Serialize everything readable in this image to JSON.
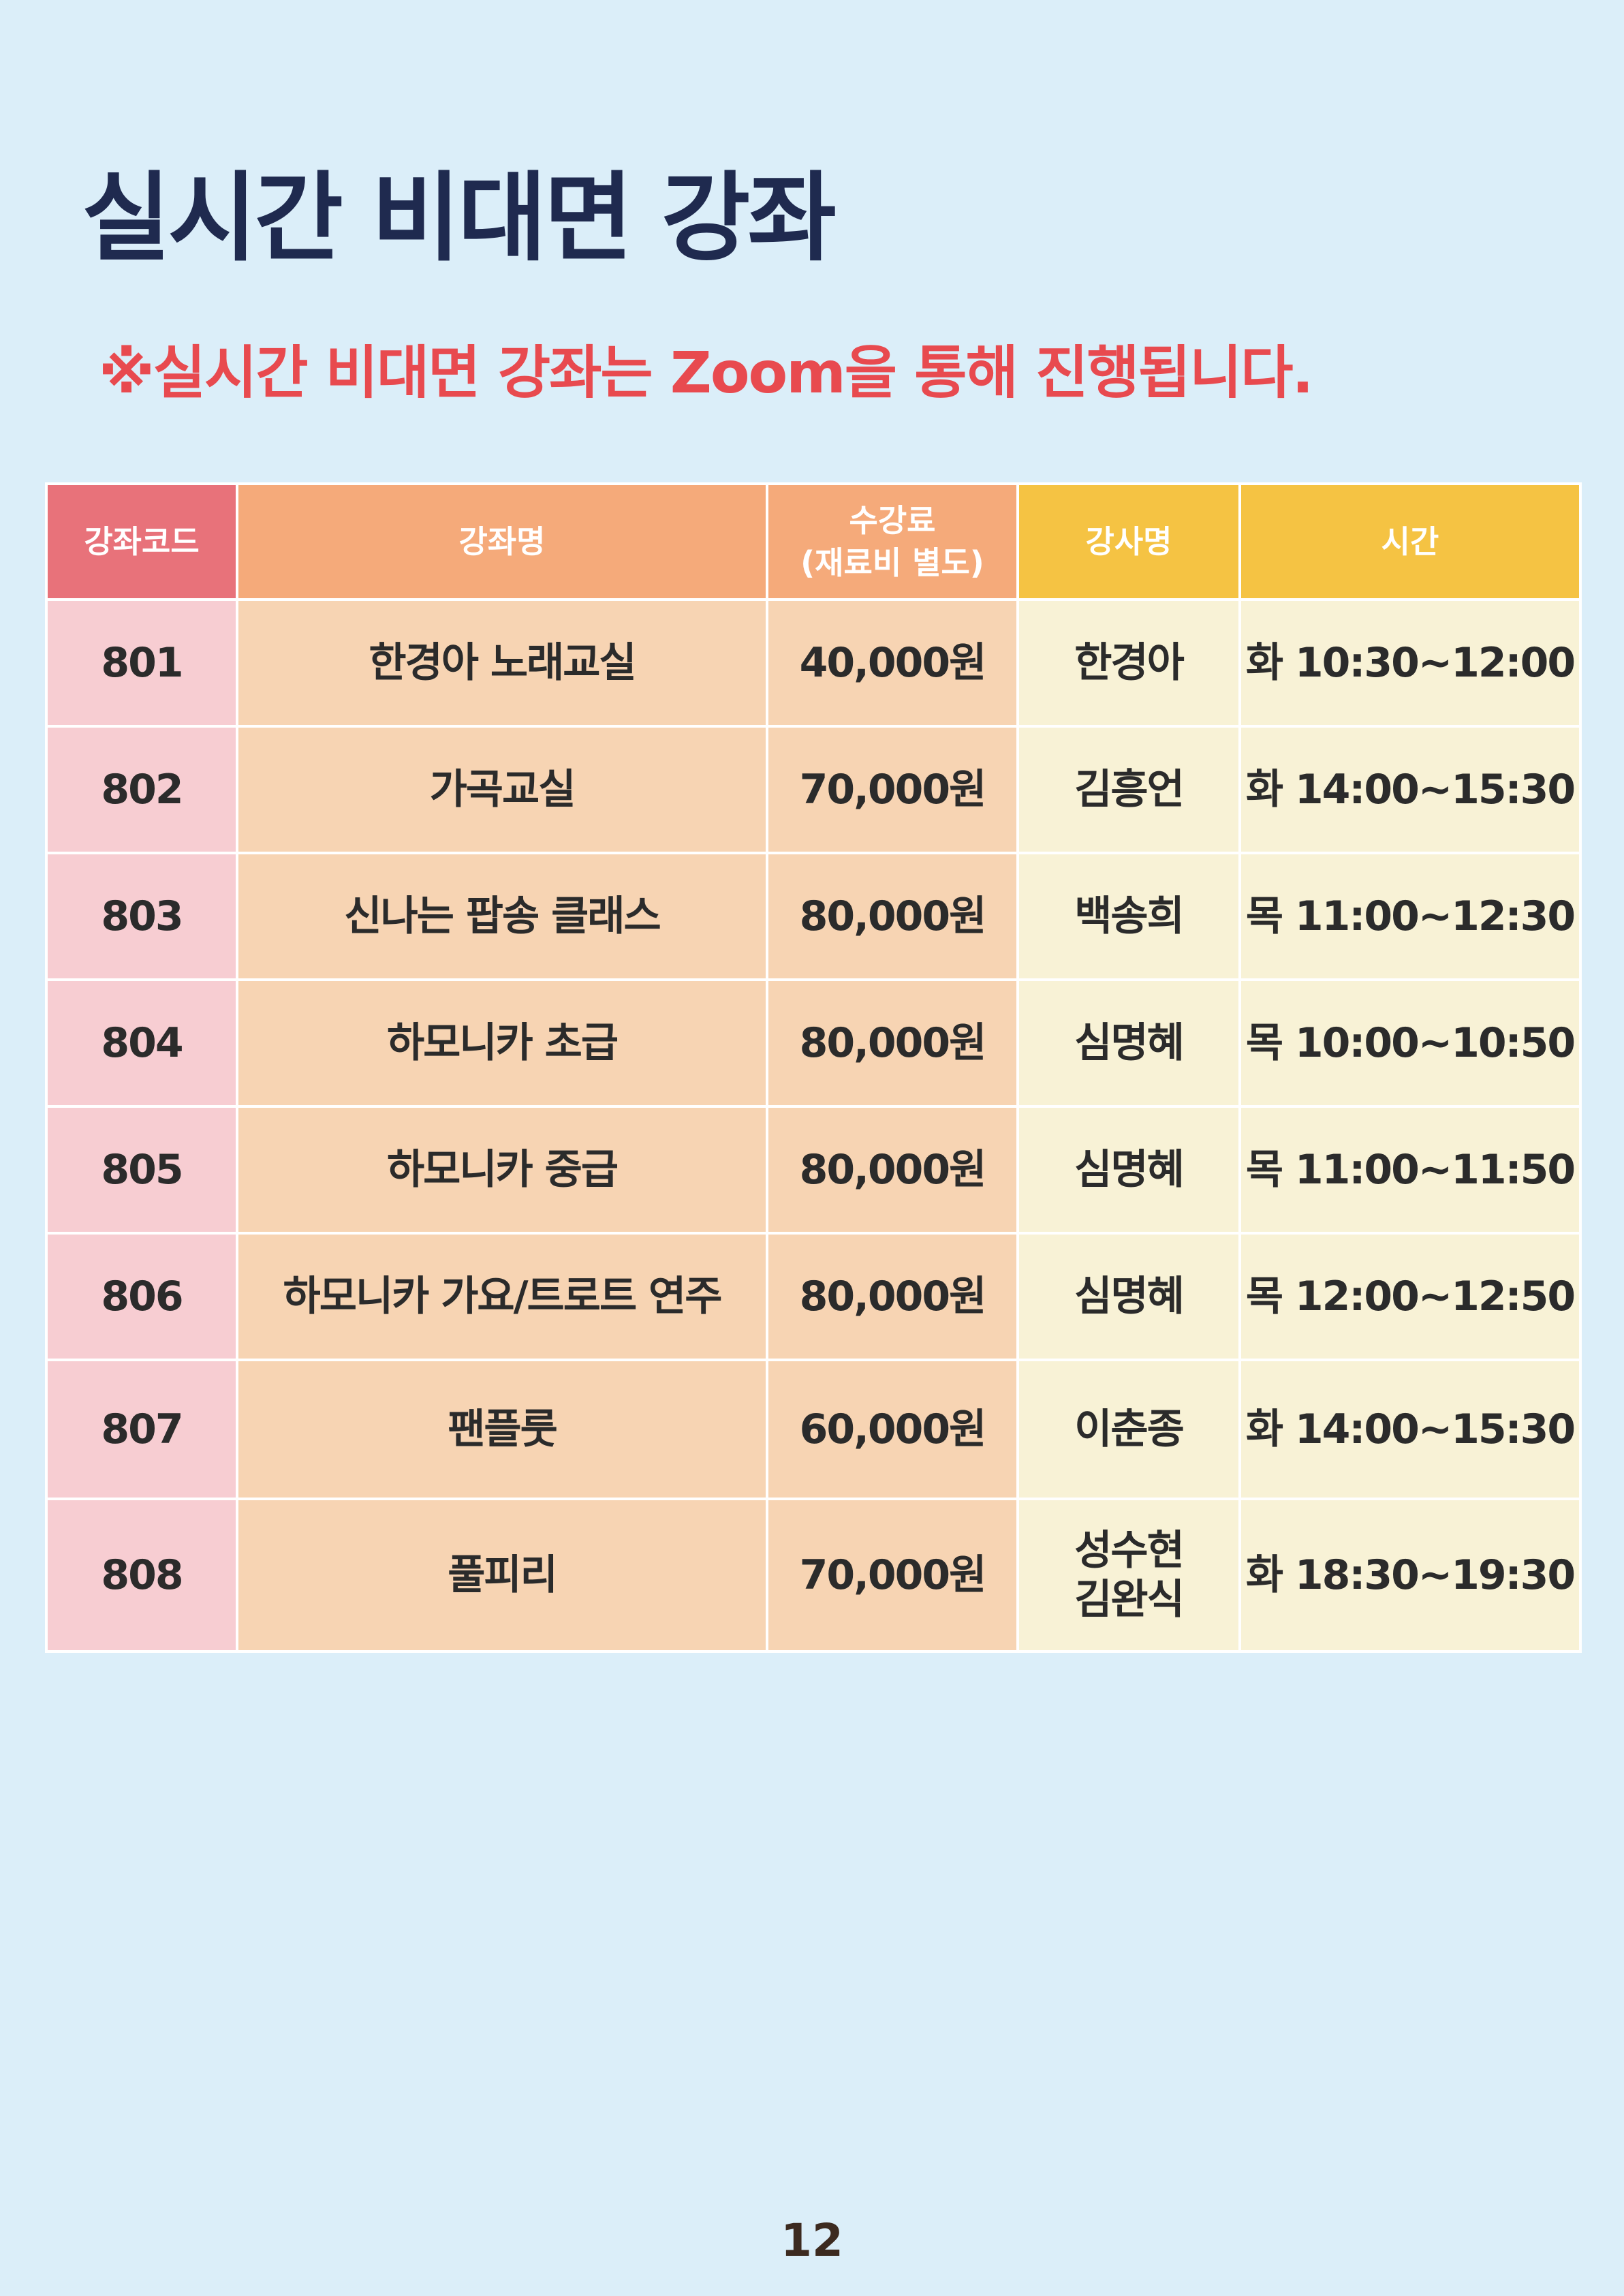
{
  "page": {
    "title": "실시간 비대면 강좌",
    "notice": "※실시간 비대면 강좌는 Zoom을 통해 진행됩니다.",
    "page_number": "12"
  },
  "table": {
    "headers": {
      "code": "강좌코드",
      "name": "강좌명",
      "fee_line1": "수강료",
      "fee_line2": "(재료비 별도)",
      "instructor": "강사명",
      "time": "시간"
    },
    "rows": [
      {
        "code": "801",
        "name": "한경아 노래교실",
        "fee": "40,000원",
        "instructor": "한경아",
        "instructor2": "",
        "time": "화 10:30~12:00"
      },
      {
        "code": "802",
        "name": "가곡교실",
        "fee": "70,000원",
        "instructor": "김흥언",
        "instructor2": "",
        "time": "화 14:00~15:30"
      },
      {
        "code": "803",
        "name": "신나는 팝송 클래스",
        "fee": "80,000원",
        "instructor": "백송희",
        "instructor2": "",
        "time": "목 11:00~12:30"
      },
      {
        "code": "804",
        "name": "하모니카 초급",
        "fee": "80,000원",
        "instructor": "심명혜",
        "instructor2": "",
        "time": "목 10:00~10:50"
      },
      {
        "code": "805",
        "name": "하모니카 중급",
        "fee": "80,000원",
        "instructor": "심명혜",
        "instructor2": "",
        "time": "목 11:00~11:50"
      },
      {
        "code": "806",
        "name": "하모니카 가요/트로트 연주",
        "fee": "80,000원",
        "instructor": "심명혜",
        "instructor2": "",
        "time": "목 12:00~12:50"
      },
      {
        "code": "807",
        "name": "팬플룻",
        "fee": "60,000원",
        "instructor": "이춘종",
        "instructor2": "",
        "time": "화 14:00~15:30"
      },
      {
        "code": "808",
        "name": "풀피리",
        "fee": "70,000원",
        "instructor": "성수현",
        "instructor2": "김완식",
        "time": "화 18:30~19:30"
      }
    ]
  }
}
